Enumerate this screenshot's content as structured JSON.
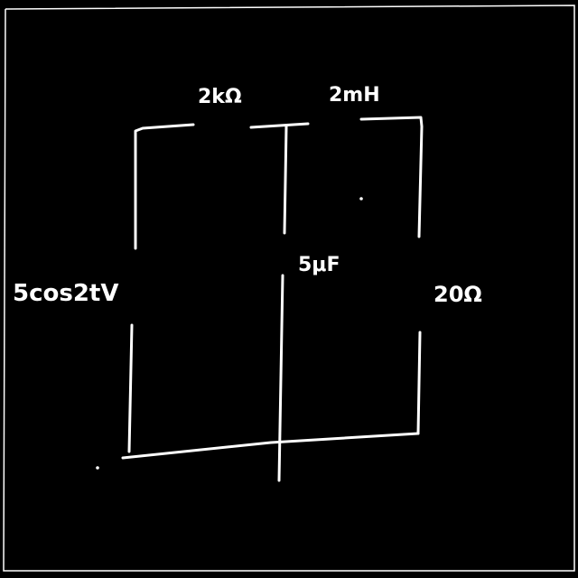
{
  "circuit": {
    "source_label": "5cos2tV",
    "resistor_top_label": "2kΩ",
    "inductor_label": "2mH",
    "capacitor_label": "5μF",
    "resistor_right_label": "20Ω"
  },
  "colors": {
    "background": "#000000",
    "ink": "#ffffff"
  }
}
